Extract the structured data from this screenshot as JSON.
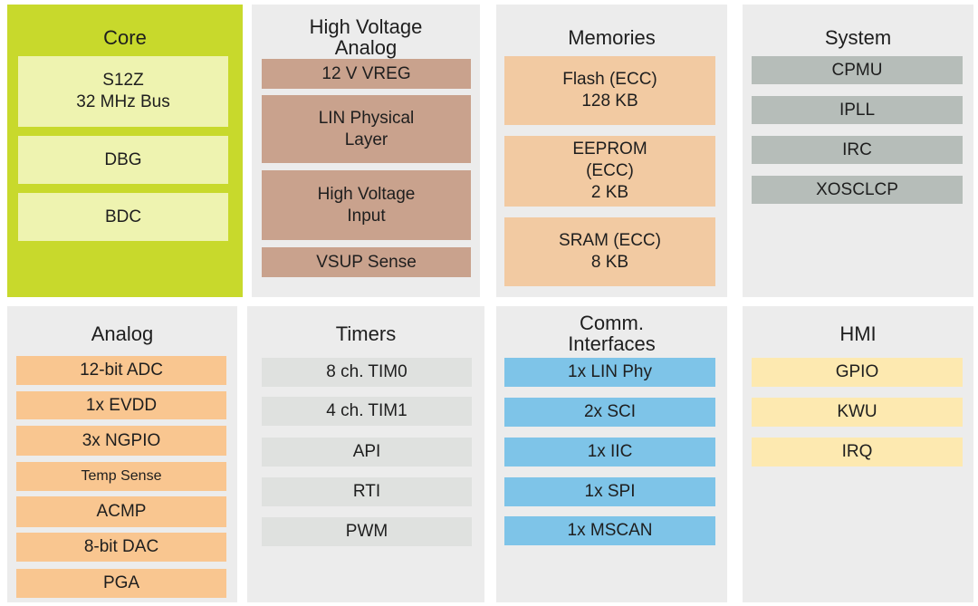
{
  "panels": [
    {
      "title": "Core",
      "items": [
        "S12Z\n32 MHz  Bus",
        "DBG",
        "BDC"
      ]
    },
    {
      "title": "High Voltage\nAnalog",
      "items": [
        "12 V VREG",
        "LIN Physical\nLayer",
        "High Voltage\nInput",
        "VSUP Sense"
      ]
    },
    {
      "title": "Memories",
      "items": [
        "Flash (ECC)\n128 KB",
        "EEPROM\n(ECC)\n2 KB",
        "SRAM (ECC)\n8 KB"
      ]
    },
    {
      "title": "System",
      "items": [
        "CPMU",
        "IPLL",
        "IRC",
        "XOSCLCP"
      ]
    },
    {
      "title": "Analog",
      "items": [
        "12-bit ADC",
        "1x EVDD",
        "3x NGPIO",
        "Temp Sense",
        "ACMP",
        "8-bit DAC",
        "PGA"
      ]
    },
    {
      "title": "Timers",
      "items": [
        "8 ch. TIM0",
        "4 ch. TIM1",
        "API",
        "RTI",
        "PWM"
      ]
    },
    {
      "title": "Comm.\nInterfaces",
      "items": [
        "1x LIN  Phy",
        "2x SCI",
        "1x IIC",
        "1x SPI",
        "1x MSCAN"
      ]
    },
    {
      "title": "HMI",
      "items": [
        "GPIO",
        "KWU",
        "IRQ"
      ]
    }
  ]
}
